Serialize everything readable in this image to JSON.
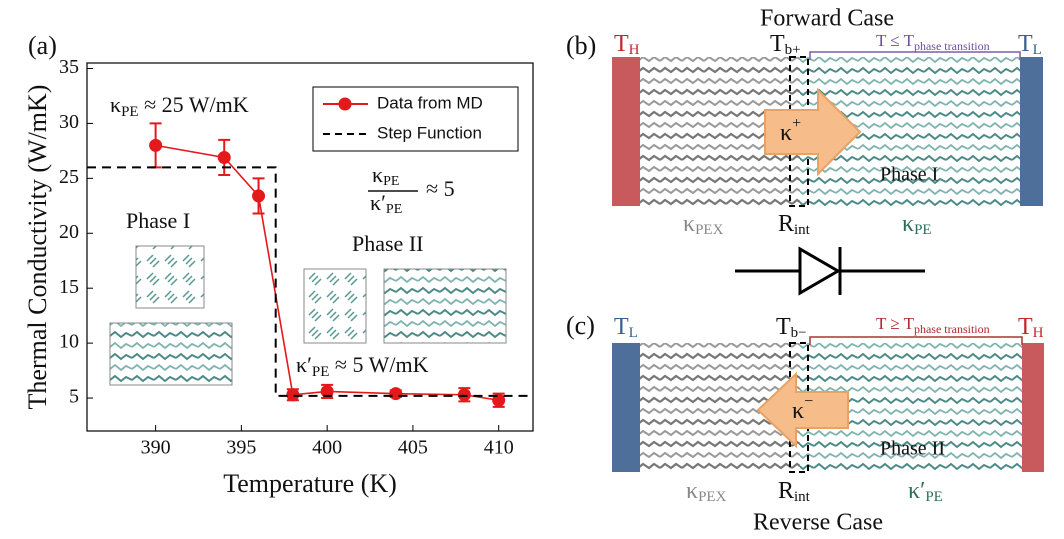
{
  "chart_data": {
    "type": "line",
    "panel_label": "(a)",
    "xlabel": "Temperature (K)",
    "ylabel": "Thermal Conductivity (W/mK)",
    "xlim": [
      386,
      412
    ],
    "ylim": [
      2,
      35.5
    ],
    "xticks": [
      390,
      395,
      400,
      405,
      410
    ],
    "yticks": [
      5,
      10,
      15,
      20,
      25,
      30,
      35
    ],
    "legend": "upper right",
    "series": [
      {
        "name": "Data from MD",
        "color": "#e3191c",
        "marker": "circle",
        "x": [
          390,
          394,
          396,
          398,
          400,
          404,
          408,
          410
        ],
        "values": [
          28,
          26.9,
          23.4,
          5.3,
          5.6,
          5.4,
          5.3,
          4.8
        ],
        "errors": [
          2,
          1.6,
          1.6,
          0.5,
          0.6,
          0.3,
          0.6,
          0.6
        ]
      },
      {
        "name": "Step Function",
        "color": "#000000",
        "dash": true,
        "x": [
          386,
          397,
          397,
          412
        ],
        "values": [
          26,
          26,
          5.2,
          5.2
        ]
      }
    ],
    "annotations": {
      "k_pe": {
        "base": "κ",
        "sub": "PE",
        "after": " ≈ 25 W/mK"
      },
      "ratio": {
        "num_base": "κ",
        "num_sub": "PE",
        "den_base": "κ′",
        "den_sub": "PE",
        "after": "≈ 5"
      },
      "phase1": "Phase I",
      "phase2": "Phase II",
      "k_pe2": {
        "base": "κ′",
        "sub": "PE",
        "after": " ≈ 5 W/mK"
      }
    }
  },
  "diagram": {
    "forward": {
      "title": "Forward Case",
      "label": "(b)",
      "t_hot": {
        "base": "T",
        "sub": "H"
      },
      "t_b": {
        "base": "T",
        "sub": "b+"
      },
      "condition": {
        "base": "T  ≤ T",
        "sub": "phase transition"
      },
      "t_cold": {
        "base": "T",
        "sub": "L"
      },
      "kappa": {
        "base": "κ",
        "sup": "+"
      },
      "phase": "Phase I",
      "k_left": {
        "base": "κ",
        "sub": "PEX"
      },
      "r_int": {
        "base": "R",
        "sub": "int"
      },
      "k_right": {
        "base": "κ",
        "sub": "PE"
      }
    },
    "reverse": {
      "title": "Reverse Case",
      "label": "(c)",
      "t_cold": {
        "base": "T",
        "sub": "L"
      },
      "t_b": {
        "base": "T",
        "sub": "b−"
      },
      "condition": {
        "base": "T  ≥ T",
        "sub": "phase transition"
      },
      "t_hot": {
        "base": "T",
        "sub": "H"
      },
      "kappa": {
        "base": "κ",
        "sup": "−"
      },
      "phase": "Phase II",
      "k_left": {
        "base": "κ",
        "sub": "PEX"
      },
      "r_int": {
        "base": "R",
        "sub": "int"
      },
      "k_right": {
        "base": "κ′",
        "sub": "PE"
      }
    }
  }
}
